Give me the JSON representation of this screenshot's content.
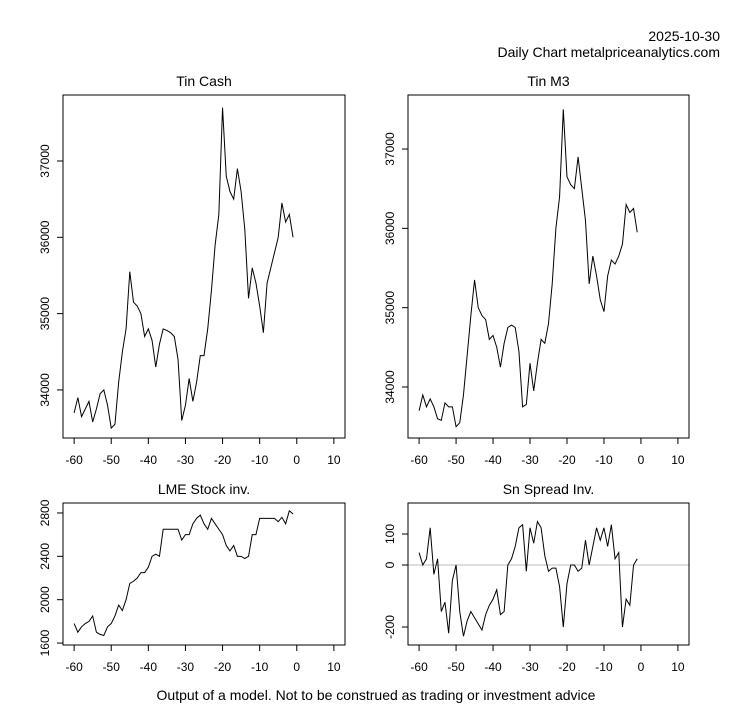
{
  "header": {
    "date": "2025-10-30",
    "source": "Daily Chart metalpriceanalytics.com"
  },
  "footer": "Output of a model. Not to be construed as trading or investment advice",
  "chart_data": [
    {
      "type": "line",
      "title": "Tin Cash",
      "color": "#000000",
      "x": [
        -60,
        -59,
        -58,
        -57,
        -56,
        -55,
        -54,
        -53,
        -52,
        -51,
        -50,
        -49,
        -48,
        -47,
        -46,
        -45,
        -44,
        -43,
        -42,
        -41,
        -40,
        -39,
        -38,
        -37,
        -36,
        -35,
        -34,
        -33,
        -32,
        -31,
        -30,
        -29,
        -28,
        -27,
        -26,
        -25,
        -24,
        -23,
        -22,
        -21,
        -20,
        -19,
        -18,
        -17,
        -16,
        -15,
        -14,
        -13,
        -12,
        -11,
        -10,
        -9,
        -8,
        -7,
        -6,
        -5,
        -4,
        -3,
        -2,
        -1
      ],
      "values": [
        33700,
        33900,
        33650,
        33750,
        33850,
        33580,
        33750,
        33950,
        34000,
        33800,
        33500,
        33550,
        34100,
        34500,
        34800,
        35550,
        35150,
        35100,
        35000,
        34700,
        34800,
        34650,
        34300,
        34600,
        34800,
        34780,
        34750,
        34700,
        34400,
        33600,
        33800,
        34150,
        33850,
        34100,
        34450,
        34450,
        34800,
        35300,
        35900,
        36300,
        37700,
        36800,
        36600,
        36500,
        36900,
        36600,
        36100,
        35200,
        35600,
        35400,
        35100,
        34750,
        35400,
        35600,
        35800,
        36000,
        36450,
        36200,
        36300,
        36000
      ],
      "xlim": [
        -63,
        13
      ],
      "xticks": [
        -60,
        -50,
        -40,
        -30,
        -20,
        -10,
        0,
        10
      ],
      "ylim": [
        33370,
        37865
      ],
      "yticks": [
        34000,
        35000,
        36000,
        37000
      ]
    },
    {
      "type": "line",
      "title": "Tin M3",
      "color": "#000000",
      "x": [
        -60,
        -59,
        -58,
        -57,
        -56,
        -55,
        -54,
        -53,
        -52,
        -51,
        -50,
        -49,
        -48,
        -47,
        -46,
        -45,
        -44,
        -43,
        -42,
        -41,
        -40,
        -39,
        -38,
        -37,
        -36,
        -35,
        -34,
        -33,
        -32,
        -31,
        -30,
        -29,
        -28,
        -27,
        -26,
        -25,
        -24,
        -23,
        -22,
        -21,
        -20,
        -19,
        -18,
        -17,
        -16,
        -15,
        -14,
        -13,
        -12,
        -11,
        -10,
        -9,
        -8,
        -7,
        -6,
        -5,
        -4,
        -3,
        -2,
        -1
      ],
      "values": [
        33700,
        33900,
        33750,
        33850,
        33750,
        33600,
        33580,
        33800,
        33750,
        33750,
        33500,
        33550,
        33900,
        34400,
        34900,
        35350,
        35000,
        34900,
        34850,
        34600,
        34650,
        34500,
        34250,
        34550,
        34750,
        34780,
        34750,
        34450,
        33750,
        33780,
        34300,
        33950,
        34300,
        34600,
        34550,
        34800,
        35300,
        36000,
        36400,
        37500,
        36650,
        36550,
        36500,
        36900,
        36500,
        36100,
        35300,
        35650,
        35400,
        35100,
        34950,
        35400,
        35600,
        35550,
        35650,
        35800,
        36300,
        36200,
        36250,
        35950
      ],
      "xlim": [
        -63,
        13
      ],
      "xticks": [
        -60,
        -50,
        -40,
        -30,
        -20,
        -10,
        0,
        10
      ],
      "ylim": [
        33357,
        37681
      ],
      "yticks": [
        34000,
        35000,
        36000,
        37000
      ]
    },
    {
      "type": "line",
      "title": "LME Stock inv.",
      "color": "#000000",
      "x": [
        -60,
        -59,
        -58,
        -57,
        -56,
        -55,
        -54,
        -53,
        -52,
        -51,
        -50,
        -49,
        -48,
        -47,
        -46,
        -45,
        -44,
        -43,
        -42,
        -41,
        -40,
        -39,
        -38,
        -37,
        -36,
        -35,
        -34,
        -33,
        -32,
        -31,
        -30,
        -29,
        -28,
        -27,
        -26,
        -25,
        -24,
        -23,
        -22,
        -21,
        -20,
        -19,
        -18,
        -17,
        -16,
        -15,
        -14,
        -13,
        -12,
        -11,
        -10,
        -9,
        -8,
        -7,
        -6,
        -5,
        -4,
        -3,
        -2,
        -1
      ],
      "values": [
        1780,
        1700,
        1750,
        1780,
        1800,
        1850,
        1700,
        1680,
        1670,
        1750,
        1780,
        1850,
        1950,
        1900,
        2000,
        2150,
        2170,
        2200,
        2250,
        2250,
        2300,
        2400,
        2420,
        2400,
        2650,
        2650,
        2650,
        2650,
        2650,
        2550,
        2600,
        2600,
        2700,
        2750,
        2780,
        2700,
        2650,
        2750,
        2700,
        2650,
        2600,
        2500,
        2450,
        2500,
        2400,
        2400,
        2380,
        2400,
        2600,
        2600,
        2750,
        2750,
        2750,
        2750,
        2750,
        2720,
        2760,
        2700,
        2820,
        2790
      ],
      "xlim": [
        -63,
        13
      ],
      "xticks": [
        -60,
        -50,
        -40,
        -30,
        -20,
        -10,
        0,
        10
      ],
      "ylim": [
        1582,
        2892
      ],
      "yticks": [
        1600,
        2000,
        2400,
        2800
      ]
    },
    {
      "type": "line",
      "title": "Sn Spread Inv.",
      "color": "#000000",
      "x": [
        -60,
        -59,
        -58,
        -57,
        -56,
        -55,
        -54,
        -53,
        -52,
        -51,
        -50,
        -49,
        -48,
        -47,
        -46,
        -45,
        -44,
        -43,
        -42,
        -41,
        -40,
        -39,
        -38,
        -37,
        -36,
        -35,
        -34,
        -33,
        -32,
        -31,
        -30,
        -29,
        -28,
        -27,
        -26,
        -25,
        -24,
        -23,
        -22,
        -21,
        -20,
        -19,
        -18,
        -17,
        -16,
        -15,
        -14,
        -13,
        -12,
        -11,
        -10,
        -9,
        -8,
        -7,
        -6,
        -5,
        -4,
        -3,
        -2,
        -1
      ],
      "values": [
        40,
        0,
        20,
        120,
        -30,
        20,
        -150,
        -120,
        -220,
        -50,
        0,
        -150,
        -230,
        -180,
        -150,
        -170,
        -190,
        -210,
        -160,
        -130,
        -110,
        -80,
        -160,
        -150,
        0,
        20,
        60,
        120,
        130,
        -20,
        120,
        70,
        140,
        120,
        30,
        -20,
        -10,
        -10,
        -70,
        -200,
        -60,
        0,
        0,
        -20,
        -10,
        80,
        0,
        60,
        120,
        80,
        120,
        60,
        130,
        20,
        40,
        -200,
        -110,
        -130,
        0,
        20
      ],
      "xlim": [
        -63,
        13
      ],
      "xticks": [
        -60,
        -50,
        -40,
        -30,
        -20,
        -10,
        0,
        10
      ],
      "ylim": [
        -258,
        200
      ],
      "yticks": [
        -200,
        0,
        100
      ],
      "reference_line": {
        "value": 0,
        "color": "#bebebe"
      }
    }
  ]
}
